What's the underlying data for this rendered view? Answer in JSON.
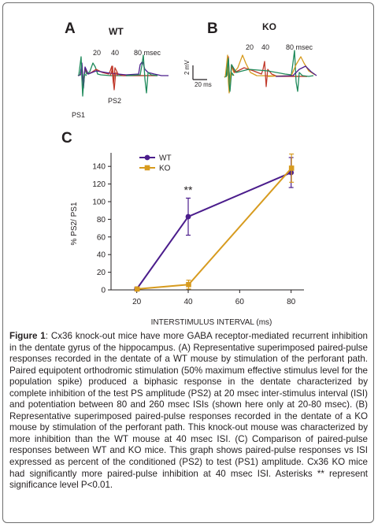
{
  "colors": {
    "wt": "#4b1d8c",
    "ko": "#d79b1f",
    "frame": "#6e6e6e"
  },
  "panel_a": {
    "letter": "A",
    "genotype": "WT",
    "isi_20": "20",
    "isi_40": "40",
    "isi_80": "80 msec",
    "ps1": "PS1",
    "ps2": "PS2",
    "trace_colors": [
      "#1f8a5b",
      "#c0392b",
      "#4b1d8c",
      "#d79b1f"
    ]
  },
  "panel_b": {
    "letter": "B",
    "genotype": "KO",
    "isi_20": "20",
    "isi_40": "40",
    "isi_80": "80 msec",
    "trace_colors": [
      "#1f8a5b",
      "#c0392b",
      "#4b1d8c",
      "#d79b1f"
    ]
  },
  "scale_bar": {
    "voltage": "2 mV",
    "time": "20 ms"
  },
  "panel_c": {
    "letter": "C"
  },
  "chart_data": {
    "type": "line",
    "xlabel": "INTERSTIMULUS INTERVAL (ms)",
    "ylabel": "% PS2/ PS1",
    "x": [
      20,
      40,
      80
    ],
    "xticks": [
      "20",
      "40",
      "60",
      "80"
    ],
    "yticks": [
      "0",
      "20",
      "40",
      "60",
      "80",
      "100",
      "120",
      "140"
    ],
    "xlim": [
      10,
      85
    ],
    "ylim": [
      0,
      150
    ],
    "legend_position": "top-left",
    "series": [
      {
        "name": "WT",
        "color": "#4b1d8c",
        "marker": "circle",
        "values": [
          1,
          83,
          133
        ],
        "errors": [
          2,
          21,
          17
        ]
      },
      {
        "name": "KO",
        "color": "#d79b1f",
        "marker": "square",
        "values": [
          1,
          6,
          138
        ],
        "errors": [
          2,
          5,
          16
        ]
      }
    ],
    "annotations": [
      {
        "text": "**",
        "x": 40
      }
    ]
  },
  "caption": {
    "label": "Figure 1",
    "text": ": Cx36 knock-out mice have more GABA receptor-mediated recurrent inhibition in the dentate gyrus of the hippocampus. (A) Representative superimposed paired-pulse responses recorded in the dentate of a WT mouse by stimulation of the perforant path. Paired equipotent orthodromic stimulation (50% maximum effective stimulus level for the population spike) produced a biphasic response in the dentate characterized by complete inhibition of the test PS amplitude (PS2) at 20 msec inter-stimulus interval (ISI) and potentiation between 80 and 260 msec ISIs (shown here only at 20-80 msec). (B) Representative superimposed paired-pulse responses recorded in the dentate of a KO mouse by stimulation of the perforant path. This knock-out mouse was characterized by more inhibition than the WT mouse at 40 msec ISI. (C) Comparison of paired-pulse responses between WT and KO mice. This graph shows paired-pulse responses vs ISI expressed as percent of the conditioned (PS2) to test (PS1) amplitude. Cx36 KO mice had significantly more paired-pulse inhibition at 40 msec ISI. Asterisks ** represent significance level P<0.01."
  }
}
